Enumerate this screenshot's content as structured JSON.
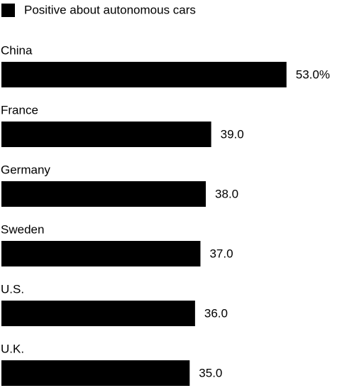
{
  "chart_data": {
    "type": "bar",
    "orientation": "horizontal",
    "categories": [
      "China",
      "France",
      "Germany",
      "Sweden",
      "U.S.",
      "U.K."
    ],
    "series": [
      {
        "name": "Positive about autonomous cars",
        "color": "#000000",
        "values": [
          53,
          39,
          38,
          37,
          36,
          35
        ],
        "value_labels": [
          "53.0%",
          "39.0",
          "38.0",
          "37.0",
          "36.0",
          "35.0"
        ]
      }
    ],
    "legend": "top-left"
  }
}
